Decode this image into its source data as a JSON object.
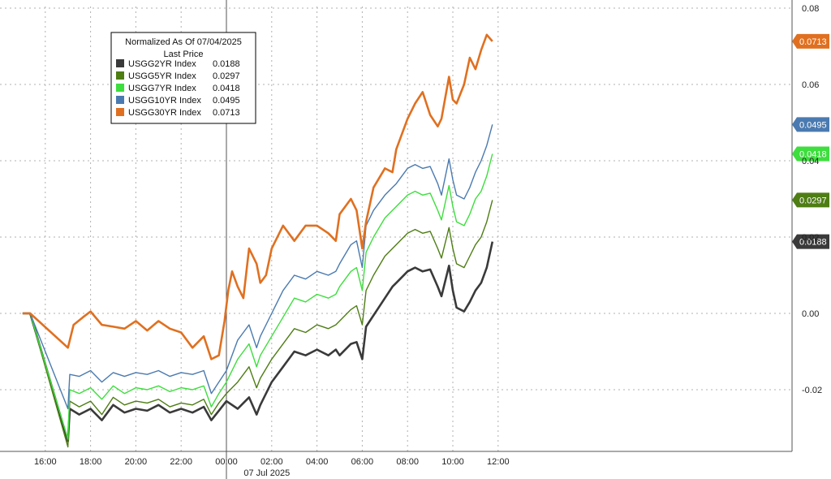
{
  "chart_data": {
    "type": "line",
    "legend": {
      "title_line1": "Normalized As Of 07/04/2025",
      "title_line2": "Last Price",
      "placement": "top-left"
    },
    "x_ticks": [
      "16:00",
      "18:00",
      "20:00",
      "22:00",
      "00:00",
      "02:00",
      "04:00",
      "06:00",
      "08:00",
      "10:00",
      "12:00"
    ],
    "x_date_label": "07 Jul 2025",
    "y_ticks": [
      "0.08",
      "0.06",
      "0.04",
      "0.02",
      "0.00",
      "-0.02"
    ],
    "ylim": [
      -0.036,
      0.08
    ],
    "grid": true,
    "series": [
      {
        "name": "USGG2YR Index",
        "last_price": "0.0188",
        "color": "#3a3a3a",
        "points": [
          [
            "15:00",
            0
          ],
          [
            "15:20",
            0
          ],
          [
            "17:00",
            -0.0335
          ],
          [
            "17:05",
            -0.025
          ],
          [
            "17:30",
            -0.0265
          ],
          [
            "18:00",
            -0.025
          ],
          [
            "18:30",
            -0.028
          ],
          [
            "19:00",
            -0.024
          ],
          [
            "19:30",
            -0.026
          ],
          [
            "20:00",
            -0.025
          ],
          [
            "20:30",
            -0.0255
          ],
          [
            "21:00",
            -0.024
          ],
          [
            "21:30",
            -0.026
          ],
          [
            "22:00",
            -0.025
          ],
          [
            "22:30",
            -0.026
          ],
          [
            "23:00",
            -0.0245
          ],
          [
            "23:20",
            -0.028
          ],
          [
            "23:40",
            -0.0255
          ],
          [
            "00:00",
            -0.023
          ],
          [
            "00:30",
            -0.025
          ],
          [
            "00:45",
            -0.0235
          ],
          [
            "01:00",
            -0.022
          ],
          [
            "01:20",
            -0.0265
          ],
          [
            "01:30",
            -0.024
          ],
          [
            "02:00",
            -0.018
          ],
          [
            "02:30",
            -0.014
          ],
          [
            "03:00",
            -0.01
          ],
          [
            "03:30",
            -0.011
          ],
          [
            "04:00",
            -0.0095
          ],
          [
            "04:30",
            -0.011
          ],
          [
            "04:50",
            -0.0095
          ],
          [
            "05:00",
            -0.011
          ],
          [
            "05:30",
            -0.008
          ],
          [
            "05:45",
            -0.0075
          ],
          [
            "06:00",
            -0.012
          ],
          [
            "06:10",
            -0.0035
          ],
          [
            "06:30",
            -0.0005
          ],
          [
            "07:00",
            0.004
          ],
          [
            "07:20",
            0.007
          ],
          [
            "07:30",
            0.008
          ],
          [
            "08:00",
            0.011
          ],
          [
            "08:20",
            0.012
          ],
          [
            "08:40",
            0.011
          ],
          [
            "09:00",
            0.0115
          ],
          [
            "09:20",
            0.007
          ],
          [
            "09:30",
            0.0045
          ],
          [
            "09:50",
            0.0125
          ],
          [
            "10:00",
            0.006
          ],
          [
            "10:10",
            0.0015
          ],
          [
            "10:30",
            0.0005
          ],
          [
            "10:45",
            0.003
          ],
          [
            "11:00",
            0.006
          ],
          [
            "11:15",
            0.008
          ],
          [
            "11:30",
            0.012
          ],
          [
            "11:45",
            0.0188
          ]
        ]
      },
      {
        "name": "USGG5YR Index",
        "last_price": "0.0297",
        "color": "#4e7d14",
        "points": [
          [
            "15:00",
            0
          ],
          [
            "15:20",
            0
          ],
          [
            "17:00",
            -0.035
          ],
          [
            "17:05",
            -0.023
          ],
          [
            "17:30",
            -0.0245
          ],
          [
            "18:00",
            -0.023
          ],
          [
            "18:30",
            -0.0265
          ],
          [
            "19:00",
            -0.022
          ],
          [
            "19:30",
            -0.024
          ],
          [
            "20:00",
            -0.023
          ],
          [
            "20:30",
            -0.0235
          ],
          [
            "21:00",
            -0.0225
          ],
          [
            "21:30",
            -0.0245
          ],
          [
            "22:00",
            -0.0235
          ],
          [
            "22:30",
            -0.024
          ],
          [
            "23:00",
            -0.0225
          ],
          [
            "23:20",
            -0.0265
          ],
          [
            "23:40",
            -0.0235
          ],
          [
            "00:00",
            -0.021
          ],
          [
            "00:30",
            -0.018
          ],
          [
            "00:45",
            -0.016
          ],
          [
            "01:00",
            -0.014
          ],
          [
            "01:20",
            -0.0195
          ],
          [
            "01:30",
            -0.017
          ],
          [
            "02:00",
            -0.012
          ],
          [
            "02:30",
            -0.008
          ],
          [
            "03:00",
            -0.004
          ],
          [
            "03:30",
            -0.005
          ],
          [
            "04:00",
            -0.003
          ],
          [
            "04:30",
            -0.004
          ],
          [
            "04:50",
            -0.003
          ],
          [
            "05:00",
            -0.002
          ],
          [
            "05:30",
            0.001
          ],
          [
            "05:45",
            0.002
          ],
          [
            "06:00",
            -0.003
          ],
          [
            "06:10",
            0.006
          ],
          [
            "06:30",
            0.01
          ],
          [
            "07:00",
            0.015
          ],
          [
            "07:20",
            0.017
          ],
          [
            "07:30",
            0.018
          ],
          [
            "08:00",
            0.021
          ],
          [
            "08:20",
            0.022
          ],
          [
            "08:40",
            0.021
          ],
          [
            "09:00",
            0.0215
          ],
          [
            "09:20",
            0.017
          ],
          [
            "09:30",
            0.0145
          ],
          [
            "09:50",
            0.0225
          ],
          [
            "10:00",
            0.017
          ],
          [
            "10:10",
            0.013
          ],
          [
            "10:30",
            0.012
          ],
          [
            "10:45",
            0.015
          ],
          [
            "11:00",
            0.018
          ],
          [
            "11:15",
            0.02
          ],
          [
            "11:30",
            0.024
          ],
          [
            "11:45",
            0.0297
          ]
        ]
      },
      {
        "name": "USGG7YR Index",
        "last_price": "0.0418",
        "color": "#3dde3d",
        "points": [
          [
            "15:00",
            0
          ],
          [
            "15:20",
            0
          ],
          [
            "17:00",
            -0.033
          ],
          [
            "17:05",
            -0.02
          ],
          [
            "17:30",
            -0.021
          ],
          [
            "18:00",
            -0.0195
          ],
          [
            "18:30",
            -0.0225
          ],
          [
            "19:00",
            -0.019
          ],
          [
            "19:30",
            -0.021
          ],
          [
            "20:00",
            -0.0195
          ],
          [
            "20:30",
            -0.02
          ],
          [
            "21:00",
            -0.019
          ],
          [
            "21:30",
            -0.0205
          ],
          [
            "22:00",
            -0.0195
          ],
          [
            "22:30",
            -0.02
          ],
          [
            "23:00",
            -0.019
          ],
          [
            "23:20",
            -0.0245
          ],
          [
            "23:40",
            -0.021
          ],
          [
            "00:00",
            -0.018
          ],
          [
            "00:30",
            -0.012
          ],
          [
            "00:45",
            -0.01
          ],
          [
            "01:00",
            -0.008
          ],
          [
            "01:20",
            -0.014
          ],
          [
            "01:30",
            -0.011
          ],
          [
            "02:00",
            -0.006
          ],
          [
            "02:30",
            -0.001
          ],
          [
            "03:00",
            0.004
          ],
          [
            "03:30",
            0.003
          ],
          [
            "04:00",
            0.005
          ],
          [
            "04:30",
            0.004
          ],
          [
            "04:50",
            0.005
          ],
          [
            "05:00",
            0.007
          ],
          [
            "05:30",
            0.011
          ],
          [
            "05:45",
            0.012
          ],
          [
            "06:00",
            0.006
          ],
          [
            "06:10",
            0.016
          ],
          [
            "06:30",
            0.02
          ],
          [
            "07:00",
            0.025
          ],
          [
            "07:20",
            0.027
          ],
          [
            "07:30",
            0.028
          ],
          [
            "08:00",
            0.031
          ],
          [
            "08:20",
            0.032
          ],
          [
            "08:40",
            0.031
          ],
          [
            "09:00",
            0.0315
          ],
          [
            "09:20",
            0.027
          ],
          [
            "09:30",
            0.0245
          ],
          [
            "09:50",
            0.0335
          ],
          [
            "10:00",
            0.028
          ],
          [
            "10:10",
            0.024
          ],
          [
            "10:30",
            0.023
          ],
          [
            "10:45",
            0.026
          ],
          [
            "11:00",
            0.03
          ],
          [
            "11:15",
            0.032
          ],
          [
            "11:30",
            0.036
          ],
          [
            "11:45",
            0.0418
          ]
        ]
      },
      {
        "name": "USGG10YR Index",
        "last_price": "0.0495",
        "color": "#4a7ab0",
        "points": [
          [
            "15:00",
            0
          ],
          [
            "15:20",
            0
          ],
          [
            "17:00",
            -0.025
          ],
          [
            "17:05",
            -0.016
          ],
          [
            "17:30",
            -0.0165
          ],
          [
            "18:00",
            -0.015
          ],
          [
            "18:30",
            -0.018
          ],
          [
            "19:00",
            -0.0155
          ],
          [
            "19:30",
            -0.0165
          ],
          [
            "20:00",
            -0.0155
          ],
          [
            "20:30",
            -0.016
          ],
          [
            "21:00",
            -0.015
          ],
          [
            "21:30",
            -0.0165
          ],
          [
            "22:00",
            -0.0155
          ],
          [
            "22:30",
            -0.016
          ],
          [
            "23:00",
            -0.015
          ],
          [
            "23:20",
            -0.021
          ],
          [
            "23:40",
            -0.018
          ],
          [
            "00:00",
            -0.015
          ],
          [
            "00:30",
            -0.007
          ],
          [
            "00:45",
            -0.005
          ],
          [
            "01:00",
            -0.003
          ],
          [
            "01:20",
            -0.009
          ],
          [
            "01:30",
            -0.006
          ],
          [
            "02:00",
            0.0
          ],
          [
            "02:30",
            0.006
          ],
          [
            "03:00",
            0.01
          ],
          [
            "03:30",
            0.009
          ],
          [
            "04:00",
            0.011
          ],
          [
            "04:30",
            0.01
          ],
          [
            "04:50",
            0.011
          ],
          [
            "05:00",
            0.013
          ],
          [
            "05:30",
            0.018
          ],
          [
            "05:45",
            0.019
          ],
          [
            "06:00",
            0.012
          ],
          [
            "06:10",
            0.023
          ],
          [
            "06:30",
            0.027
          ],
          [
            "07:00",
            0.031
          ],
          [
            "07:20",
            0.033
          ],
          [
            "07:30",
            0.034
          ],
          [
            "08:00",
            0.038
          ],
          [
            "08:20",
            0.039
          ],
          [
            "08:40",
            0.038
          ],
          [
            "09:00",
            0.0385
          ],
          [
            "09:20",
            0.034
          ],
          [
            "09:30",
            0.031
          ],
          [
            "09:50",
            0.0405
          ],
          [
            "10:00",
            0.035
          ],
          [
            "10:10",
            0.031
          ],
          [
            "10:30",
            0.03
          ],
          [
            "10:45",
            0.033
          ],
          [
            "11:00",
            0.037
          ],
          [
            "11:15",
            0.04
          ],
          [
            "11:30",
            0.044
          ],
          [
            "11:45",
            0.0495
          ]
        ]
      },
      {
        "name": "USGG30YR Index",
        "last_price": "0.0713",
        "color": "#e07020",
        "points": [
          [
            "15:00",
            0
          ],
          [
            "15:20",
            0
          ],
          [
            "17:00",
            -0.009
          ],
          [
            "17:15",
            -0.003
          ],
          [
            "17:40",
            -0.001
          ],
          [
            "18:00",
            0.0005
          ],
          [
            "18:30",
            -0.003
          ],
          [
            "19:00",
            -0.0035
          ],
          [
            "19:30",
            -0.004
          ],
          [
            "20:00",
            -0.002
          ],
          [
            "20:30",
            -0.0045
          ],
          [
            "21:00",
            -0.002
          ],
          [
            "21:30",
            -0.004
          ],
          [
            "22:00",
            -0.005
          ],
          [
            "22:30",
            -0.009
          ],
          [
            "23:00",
            -0.006
          ],
          [
            "23:20",
            -0.012
          ],
          [
            "23:40",
            -0.011
          ],
          [
            "23:55",
            -0.002
          ],
          [
            "00:05",
            0.006
          ],
          [
            "00:15",
            0.011
          ],
          [
            "00:30",
            0.007
          ],
          [
            "00:45",
            0.004
          ],
          [
            "01:00",
            0.017
          ],
          [
            "01:20",
            0.013
          ],
          [
            "01:30",
            0.008
          ],
          [
            "01:45",
            0.01
          ],
          [
            "02:00",
            0.017
          ],
          [
            "02:30",
            0.023
          ],
          [
            "03:00",
            0.019
          ],
          [
            "03:30",
            0.023
          ],
          [
            "04:00",
            0.023
          ],
          [
            "04:30",
            0.021
          ],
          [
            "04:50",
            0.019
          ],
          [
            "05:00",
            0.026
          ],
          [
            "05:30",
            0.03
          ],
          [
            "05:45",
            0.027
          ],
          [
            "06:00",
            0.017
          ],
          [
            "06:10",
            0.024
          ],
          [
            "06:30",
            0.033
          ],
          [
            "07:00",
            0.038
          ],
          [
            "07:20",
            0.037
          ],
          [
            "07:30",
            0.043
          ],
          [
            "08:00",
            0.051
          ],
          [
            "08:20",
            0.055
          ],
          [
            "08:40",
            0.058
          ],
          [
            "09:00",
            0.052
          ],
          [
            "09:20",
            0.049
          ],
          [
            "09:30",
            0.051
          ],
          [
            "09:50",
            0.062
          ],
          [
            "10:00",
            0.056
          ],
          [
            "10:10",
            0.055
          ],
          [
            "10:30",
            0.06
          ],
          [
            "10:45",
            0.067
          ],
          [
            "11:00",
            0.064
          ],
          [
            "11:15",
            0.069
          ],
          [
            "11:30",
            0.073
          ],
          [
            "11:45",
            0.0713
          ]
        ]
      }
    ]
  }
}
